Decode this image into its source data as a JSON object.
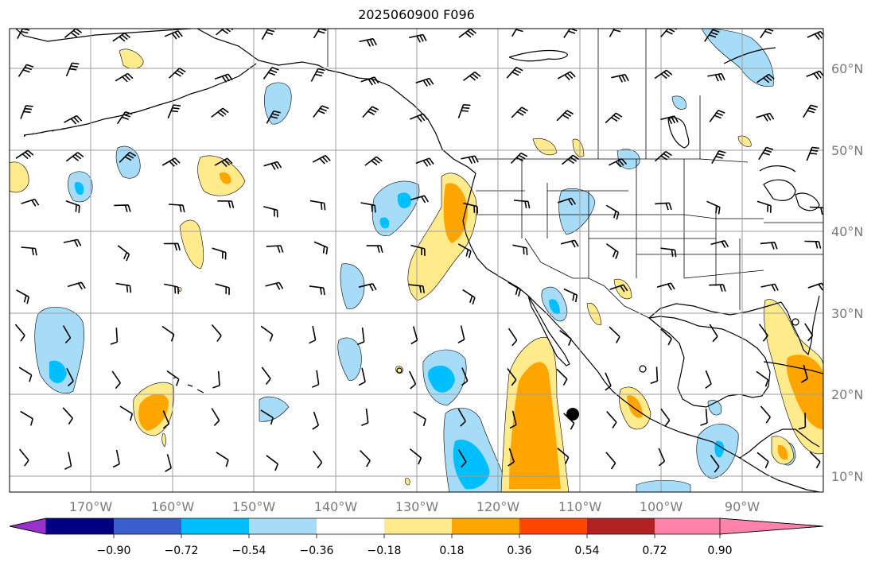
{
  "title": "2025060900 F096",
  "longitude_labels": [
    "170°W",
    "160°W",
    "150°W",
    "140°W",
    "130°W",
    "120°W",
    "110°W",
    "100°W",
    "90°W"
  ],
  "latitude_labels": [
    "60°N",
    "50°N",
    "40°N",
    "30°N",
    "20°N",
    "10°N"
  ],
  "colorbar": {
    "tick_labels": [
      "−0.90",
      "−0.72",
      "−0.54",
      "−0.36",
      "−0.18",
      "0.18",
      "0.36",
      "0.54",
      "0.72",
      "0.90"
    ],
    "colors": {
      "under": "#9932cc",
      "bins": [
        "#000080",
        "#3a5fcd",
        "#00bfff",
        "#a6dcf7",
        "#ffffff",
        "#ffeb8c",
        "#ffa500",
        "#ff4500",
        "#b22222",
        "#ff82ab"
      ],
      "over": "#ff82ab"
    }
  },
  "colors": {
    "grid": "#9e9e9e",
    "coast": "#000000",
    "light_blue": "#a6dcf7",
    "blue": "#00bfff",
    "light_yellow": "#ffeb8c",
    "orange": "#ffa500"
  }
}
